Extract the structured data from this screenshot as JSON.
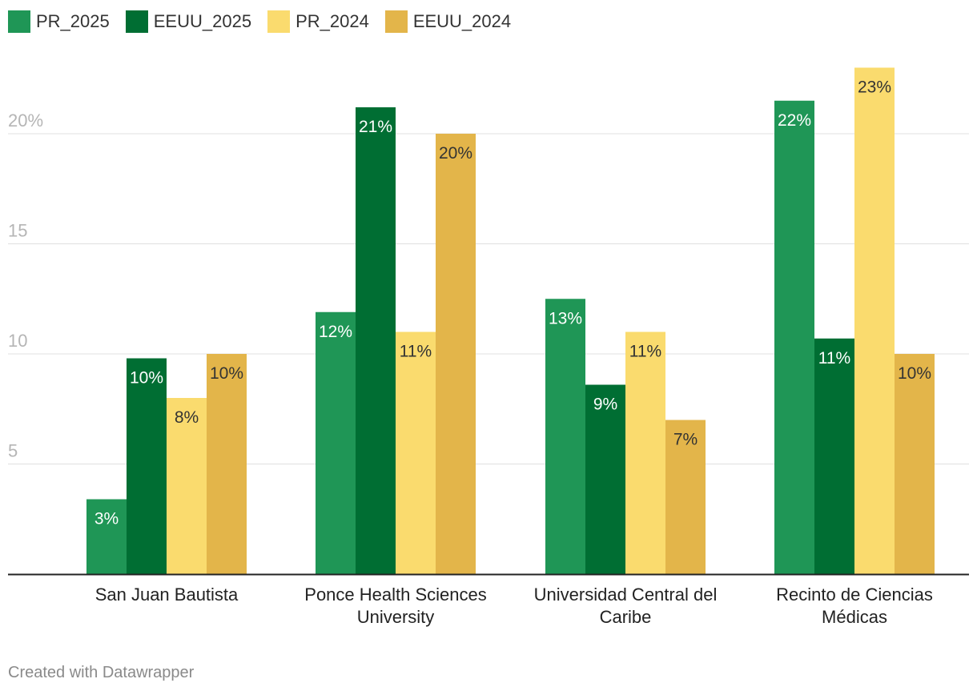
{
  "chart_data": {
    "type": "bar",
    "categories": [
      [
        "San Juan Bautista"
      ],
      [
        "Ponce Health Sciences",
        "University"
      ],
      [
        "Universidad Central del",
        "Caribe"
      ],
      [
        "Recinto de Ciencias",
        "Médicas"
      ]
    ],
    "series": [
      {
        "name": "PR_2025",
        "color": "#1f9656",
        "values": [
          3.4,
          11.9,
          12.5,
          21.5
        ],
        "labels": [
          "3%",
          "12%",
          "13%",
          "22%"
        ]
      },
      {
        "name": "EEUU_2025",
        "color": "#006e33",
        "values": [
          9.8,
          21.2,
          8.6,
          10.7
        ],
        "labels": [
          "10%",
          "21%",
          "9%",
          "11%"
        ]
      },
      {
        "name": "PR_2024",
        "color": "#fadb6e",
        "values": [
          8.0,
          11.0,
          11.0,
          23.0
        ],
        "labels": [
          "8%",
          "11%",
          "11%",
          "23%"
        ]
      },
      {
        "name": "EEUU_2024",
        "color": "#e3b54a",
        "values": [
          10.0,
          20.0,
          7.0,
          10.0
        ],
        "labels": [
          "10%",
          "20%",
          "7%",
          "10%"
        ]
      }
    ],
    "y_ticks": [
      {
        "value": 5,
        "label": "5"
      },
      {
        "value": 10,
        "label": "10"
      },
      {
        "value": 15,
        "label": "15"
      },
      {
        "value": 20,
        "label": "20%"
      }
    ],
    "ylim": [
      0,
      23
    ],
    "grid": true,
    "legend_position": "top-left",
    "title": "",
    "xlabel": "",
    "ylabel": ""
  },
  "footer": {
    "text": "Created with Datawrapper"
  }
}
